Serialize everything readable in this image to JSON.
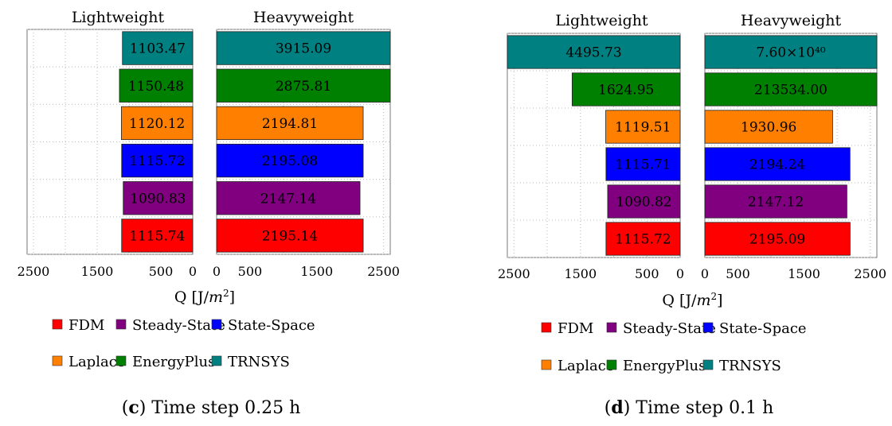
{
  "chart_data": [
    {
      "type": "bar",
      "orientation": "horizontal-butterfly",
      "panel_titles": [
        "Lightweight",
        "Heavyweight"
      ],
      "xlabel": "Q [J/m²]",
      "xlabel_parts": {
        "pre": "Q [J/",
        "italic": "m",
        "sup": "2",
        "post": "]"
      },
      "xlim": [
        0,
        2600
      ],
      "xticks": [
        2500,
        1500,
        500,
        0
      ],
      "xticks_right": [
        0,
        500,
        1500,
        2500
      ],
      "grid": true,
      "categories": [
        "TRNSYS",
        "EnergyPlus",
        "Laplace",
        "State-Space",
        "Steady-State",
        "FDM"
      ],
      "colors": [
        "#008080",
        "#008000",
        "#FF8000",
        "#0000FF",
        "#800080",
        "#FF0000"
      ],
      "lightweight": [
        1103.47,
        1150.48,
        1120.12,
        1115.72,
        1090.83,
        1115.74
      ],
      "lightweight_labels": [
        "1103.47",
        "1150.48",
        "1120.12",
        "1115.72",
        "1090.83",
        "1115.74"
      ],
      "heavyweight": [
        3915.09,
        2875.81,
        2194.81,
        2195.08,
        2147.14,
        2195.14
      ],
      "heavyweight_labels": [
        "3915.09",
        "2875.81",
        "2194.81",
        "2195.08",
        "2147.14",
        "2195.14"
      ],
      "caption_letter": "c",
      "caption_text": "Time step 0.25 h"
    },
    {
      "type": "bar",
      "orientation": "horizontal-butterfly",
      "panel_titles": [
        "Lightweight",
        "Heavyweight"
      ],
      "xlabel": "Q [J/m²]",
      "xlabel_parts": {
        "pre": "Q [J/",
        "italic": "m",
        "sup": "2",
        "post": "]"
      },
      "xlim": [
        0,
        2600
      ],
      "xticks": [
        2500,
        1500,
        500,
        0
      ],
      "xticks_right": [
        0,
        500,
        1500,
        2500
      ],
      "grid": true,
      "categories": [
        "TRNSYS",
        "EnergyPlus",
        "Laplace",
        "State-Space",
        "Steady-State",
        "FDM"
      ],
      "colors": [
        "#008080",
        "#008000",
        "#FF8000",
        "#0000FF",
        "#800080",
        "#FF0000"
      ],
      "lightweight": [
        4495.73,
        1624.95,
        1119.51,
        1115.71,
        1090.82,
        1115.72
      ],
      "lightweight_labels": [
        "4495.73",
        "1624.95",
        "1119.51",
        "1115.71",
        "1090.82",
        "1115.72"
      ],
      "heavyweight": [
        7.6e+40,
        213534.0,
        1930.96,
        2194.24,
        2147.12,
        2195.09
      ],
      "heavyweight_labels": [
        "7.60×10⁴⁰",
        "213534.00",
        "1930.96",
        "2194.24",
        "2147.12",
        "2195.09"
      ],
      "caption_letter": "d",
      "caption_text": "Time step 0.1 h"
    }
  ],
  "legend": {
    "rows": [
      [
        {
          "label": "FDM",
          "color": "#FF0000"
        },
        {
          "label": "Steady-State",
          "color": "#800080"
        },
        {
          "label": "State-Space",
          "color": "#0000FF"
        }
      ],
      [
        {
          "label": "Laplace",
          "color": "#FF8000"
        },
        {
          "label": "EnergyPlus",
          "color": "#008000"
        },
        {
          "label": "TRNSYS",
          "color": "#008080"
        }
      ]
    ]
  }
}
